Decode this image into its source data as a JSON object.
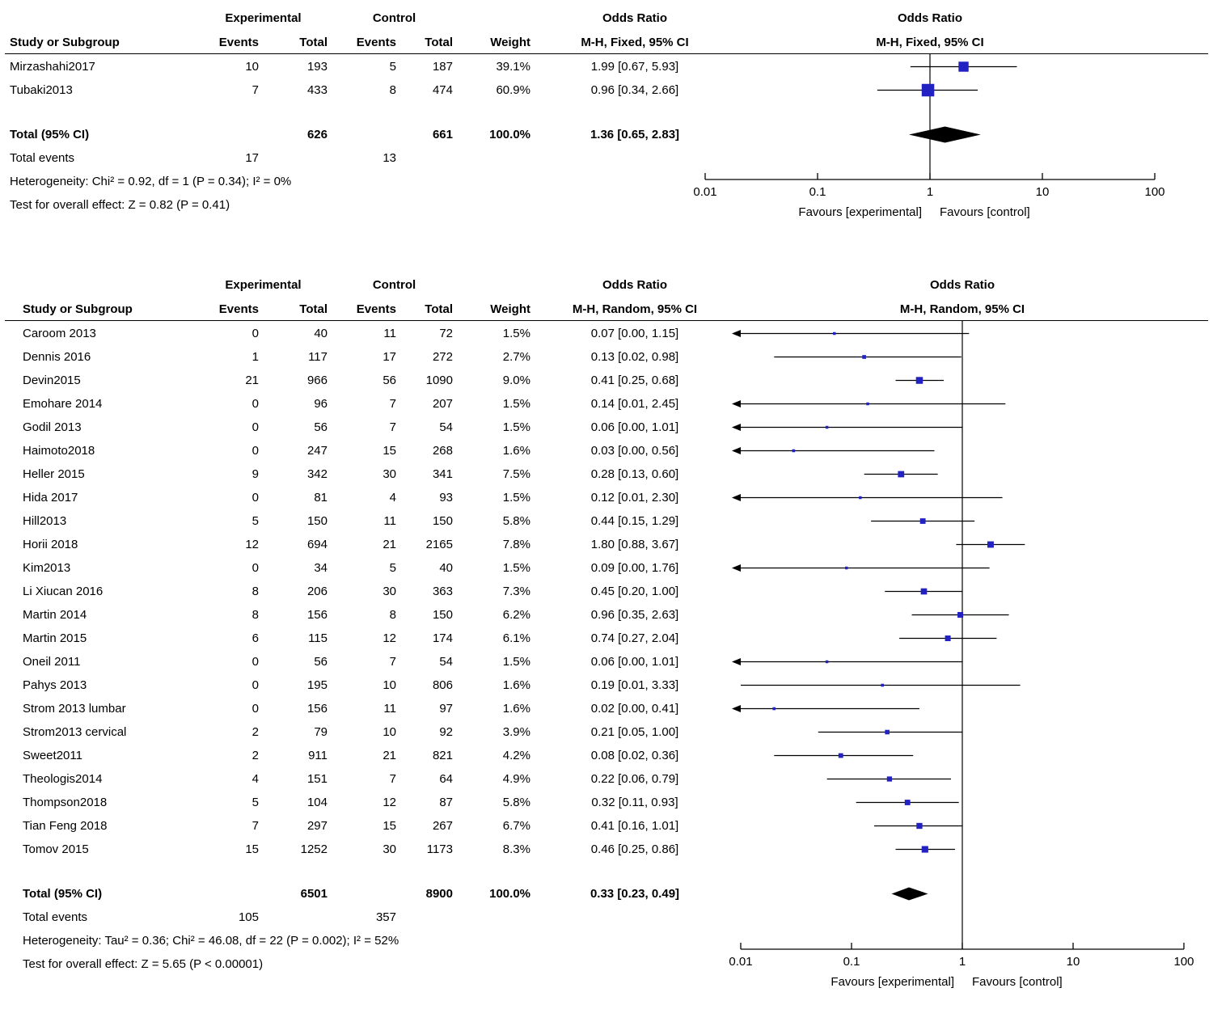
{
  "colors": {
    "square": "#2222c2",
    "diamond": "#000000",
    "line": "#000000",
    "text": "#000000",
    "background": "#ffffff"
  },
  "chart_data": {
    "type": "forest",
    "scale": "log10",
    "axis_min": 0.01,
    "axis_max": 100,
    "panels": [
      {
        "name": "fixed-effect",
        "headers": {
          "group_experimental": "Experimental",
          "group_control": "Control",
          "or_col_title": "Odds Ratio",
          "plot_title": "Odds Ratio",
          "study": "Study or Subgroup",
          "events": "Events",
          "total": "Total",
          "weight": "Weight",
          "method": "M-H, Fixed, 95% CI",
          "plot_method": "M-H, Fixed, 95% CI"
        },
        "studies": [
          {
            "study": "Mirzashahi2017",
            "exp_events": "10",
            "exp_total": "193",
            "ctl_events": "5",
            "ctl_total": "187",
            "weight": "39.1%",
            "or_text": "1.99 [0.67, 5.93]",
            "est": 1.99,
            "lo": 0.67,
            "hi": 5.93,
            "w": 39.1,
            "clip_lo": false
          },
          {
            "study": "Tubaki2013",
            "exp_events": "7",
            "exp_total": "433",
            "ctl_events": "8",
            "ctl_total": "474",
            "weight": "60.9%",
            "or_text": "0.96 [0.34, 2.66]",
            "est": 0.96,
            "lo": 0.34,
            "hi": 2.66,
            "w": 60.9,
            "clip_lo": false
          }
        ],
        "total_row": {
          "label": "Total (95% CI)",
          "exp_total": "626",
          "ctl_total": "661",
          "weight": "100.0%",
          "or_text": "1.36 [0.65, 2.83]",
          "est": 1.36,
          "lo": 0.65,
          "hi": 2.83
        },
        "total_events": {
          "label": "Total events",
          "exp": "17",
          "ctl": "13"
        },
        "heterogeneity": "Heterogeneity: Chi² = 0.92, df = 1 (P = 0.34); I² = 0%",
        "overall_effect": "Test for overall effect: Z = 0.82 (P = 0.41)",
        "axis_ticks": [
          "0.01",
          "0.1",
          "1",
          "10",
          "100"
        ],
        "axis_values": [
          0.01,
          0.1,
          1,
          10,
          100
        ],
        "favours_left": "Favours [experimental]",
        "favours_right": "Favours [control]"
      },
      {
        "name": "random-effect",
        "headers": {
          "group_experimental": "Experimental",
          "group_control": "Control",
          "or_col_title": "Odds Ratio",
          "plot_title": "Odds Ratio",
          "study": "Study or Subgroup",
          "events": "Events",
          "total": "Total",
          "weight": "Weight",
          "method": "M-H, Random, 95% CI",
          "plot_method": "M-H, Random, 95% CI"
        },
        "studies": [
          {
            "study": "Caroom 2013",
            "exp_events": "0",
            "exp_total": "40",
            "ctl_events": "11",
            "ctl_total": "72",
            "weight": "1.5%",
            "or_text": "0.07 [0.00, 1.15]",
            "est": 0.07,
            "lo": 0.01,
            "hi": 1.15,
            "w": 1.5,
            "clip_lo": true
          },
          {
            "study": "Dennis 2016",
            "exp_events": "1",
            "exp_total": "117",
            "ctl_events": "17",
            "ctl_total": "272",
            "weight": "2.7%",
            "or_text": "0.13 [0.02, 0.98]",
            "est": 0.13,
            "lo": 0.02,
            "hi": 0.98,
            "w": 2.7,
            "clip_lo": false
          },
          {
            "study": "Devin2015",
            "exp_events": "21",
            "exp_total": "966",
            "ctl_events": "56",
            "ctl_total": "1090",
            "weight": "9.0%",
            "or_text": "0.41 [0.25, 0.68]",
            "est": 0.41,
            "lo": 0.25,
            "hi": 0.68,
            "w": 9.0,
            "clip_lo": false
          },
          {
            "study": "Emohare 2014",
            "exp_events": "0",
            "exp_total": "96",
            "ctl_events": "7",
            "ctl_total": "207",
            "weight": "1.5%",
            "or_text": "0.14 [0.01, 2.45]",
            "est": 0.14,
            "lo": 0.01,
            "hi": 2.45,
            "w": 1.5,
            "clip_lo": true
          },
          {
            "study": "Godil 2013",
            "exp_events": "0",
            "exp_total": "56",
            "ctl_events": "7",
            "ctl_total": "54",
            "weight": "1.5%",
            "or_text": "0.06 [0.00, 1.01]",
            "est": 0.06,
            "lo": 0.01,
            "hi": 1.01,
            "w": 1.5,
            "clip_lo": true
          },
          {
            "study": "Haimoto2018",
            "exp_events": "0",
            "exp_total": "247",
            "ctl_events": "15",
            "ctl_total": "268",
            "weight": "1.6%",
            "or_text": "0.03 [0.00, 0.56]",
            "est": 0.03,
            "lo": 0.01,
            "hi": 0.56,
            "w": 1.6,
            "clip_lo": true
          },
          {
            "study": "Heller 2015",
            "exp_events": "9",
            "exp_total": "342",
            "ctl_events": "30",
            "ctl_total": "341",
            "weight": "7.5%",
            "or_text": "0.28 [0.13, 0.60]",
            "est": 0.28,
            "lo": 0.13,
            "hi": 0.6,
            "w": 7.5,
            "clip_lo": false
          },
          {
            "study": "Hida 2017",
            "exp_events": "0",
            "exp_total": "81",
            "ctl_events": "4",
            "ctl_total": "93",
            "weight": "1.5%",
            "or_text": "0.12 [0.01, 2.30]",
            "est": 0.12,
            "lo": 0.01,
            "hi": 2.3,
            "w": 1.5,
            "clip_lo": true
          },
          {
            "study": "Hill2013",
            "exp_events": "5",
            "exp_total": "150",
            "ctl_events": "11",
            "ctl_total": "150",
            "weight": "5.8%",
            "or_text": "0.44 [0.15, 1.29]",
            "est": 0.44,
            "lo": 0.15,
            "hi": 1.29,
            "w": 5.8,
            "clip_lo": false
          },
          {
            "study": "Horii 2018",
            "exp_events": "12",
            "exp_total": "694",
            "ctl_events": "21",
            "ctl_total": "2165",
            "weight": "7.8%",
            "or_text": "1.80 [0.88, 3.67]",
            "est": 1.8,
            "lo": 0.88,
            "hi": 3.67,
            "w": 7.8,
            "clip_lo": false
          },
          {
            "study": "Kim2013",
            "exp_events": "0",
            "exp_total": "34",
            "ctl_events": "5",
            "ctl_total": "40",
            "weight": "1.5%",
            "or_text": "0.09 [0.00, 1.76]",
            "est": 0.09,
            "lo": 0.01,
            "hi": 1.76,
            "w": 1.5,
            "clip_lo": true
          },
          {
            "study": "Li Xiucan 2016",
            "exp_events": "8",
            "exp_total": "206",
            "ctl_events": "30",
            "ctl_total": "363",
            "weight": "7.3%",
            "or_text": "0.45 [0.20, 1.00]",
            "est": 0.45,
            "lo": 0.2,
            "hi": 1.0,
            "w": 7.3,
            "clip_lo": false
          },
          {
            "study": "Martin 2014",
            "exp_events": "8",
            "exp_total": "156",
            "ctl_events": "8",
            "ctl_total": "150",
            "weight": "6.2%",
            "or_text": "0.96 [0.35, 2.63]",
            "est": 0.96,
            "lo": 0.35,
            "hi": 2.63,
            "w": 6.2,
            "clip_lo": false
          },
          {
            "study": "Martin 2015",
            "exp_events": "6",
            "exp_total": "115",
            "ctl_events": "12",
            "ctl_total": "174",
            "weight": "6.1%",
            "or_text": "0.74 [0.27, 2.04]",
            "est": 0.74,
            "lo": 0.27,
            "hi": 2.04,
            "w": 6.1,
            "clip_lo": false
          },
          {
            "study": "Oneil 2011",
            "exp_events": "0",
            "exp_total": "56",
            "ctl_events": "7",
            "ctl_total": "54",
            "weight": "1.5%",
            "or_text": "0.06 [0.00, 1.01]",
            "est": 0.06,
            "lo": 0.01,
            "hi": 1.01,
            "w": 1.5,
            "clip_lo": true
          },
          {
            "study": "Pahys 2013",
            "exp_events": "0",
            "exp_total": "195",
            "ctl_events": "10",
            "ctl_total": "806",
            "weight": "1.6%",
            "or_text": "0.19 [0.01, 3.33]",
            "est": 0.19,
            "lo": 0.01,
            "hi": 3.33,
            "w": 1.6,
            "clip_lo": false
          },
          {
            "study": "Strom 2013 lumbar",
            "exp_events": "0",
            "exp_total": "156",
            "ctl_events": "11",
            "ctl_total": "97",
            "weight": "1.6%",
            "or_text": "0.02 [0.00, 0.41]",
            "est": 0.02,
            "lo": 0.01,
            "hi": 0.41,
            "w": 1.6,
            "clip_lo": true
          },
          {
            "study": "Strom2013 cervical",
            "exp_events": "2",
            "exp_total": "79",
            "ctl_events": "10",
            "ctl_total": "92",
            "weight": "3.9%",
            "or_text": "0.21 [0.05, 1.00]",
            "est": 0.21,
            "lo": 0.05,
            "hi": 1.0,
            "w": 3.9,
            "clip_lo": false
          },
          {
            "study": "Sweet2011",
            "exp_events": "2",
            "exp_total": "911",
            "ctl_events": "21",
            "ctl_total": "821",
            "weight": "4.2%",
            "or_text": "0.08 [0.02, 0.36]",
            "est": 0.08,
            "lo": 0.02,
            "hi": 0.36,
            "w": 4.2,
            "clip_lo": false
          },
          {
            "study": "Theologis2014",
            "exp_events": "4",
            "exp_total": "151",
            "ctl_events": "7",
            "ctl_total": "64",
            "weight": "4.9%",
            "or_text": "0.22 [0.06, 0.79]",
            "est": 0.22,
            "lo": 0.06,
            "hi": 0.79,
            "w": 4.9,
            "clip_lo": false
          },
          {
            "study": "Thompson2018",
            "exp_events": "5",
            "exp_total": "104",
            "ctl_events": "12",
            "ctl_total": "87",
            "weight": "5.8%",
            "or_text": "0.32 [0.11, 0.93]",
            "est": 0.32,
            "lo": 0.11,
            "hi": 0.93,
            "w": 5.8,
            "clip_lo": false
          },
          {
            "study": "Tian Feng 2018",
            "exp_events": "7",
            "exp_total": "297",
            "ctl_events": "15",
            "ctl_total": "267",
            "weight": "6.7%",
            "or_text": "0.41 [0.16, 1.01]",
            "est": 0.41,
            "lo": 0.16,
            "hi": 1.01,
            "w": 6.7,
            "clip_lo": false
          },
          {
            "study": "Tomov 2015",
            "exp_events": "15",
            "exp_total": "1252",
            "ctl_events": "30",
            "ctl_total": "1173",
            "weight": "8.3%",
            "or_text": "0.46 [0.25, 0.86]",
            "est": 0.46,
            "lo": 0.25,
            "hi": 0.86,
            "w": 8.3,
            "clip_lo": false
          }
        ],
        "total_row": {
          "label": "Total (95% CI)",
          "exp_total": "6501",
          "ctl_total": "8900",
          "weight": "100.0%",
          "or_text": "0.33 [0.23, 0.49]",
          "est": 0.33,
          "lo": 0.23,
          "hi": 0.49
        },
        "total_events": {
          "label": "Total events",
          "exp": "105",
          "ctl": "357"
        },
        "heterogeneity": "Heterogeneity: Tau² = 0.36; Chi² = 46.08, df = 22 (P = 0.002); I² = 52%",
        "overall_effect": "Test for overall effect: Z = 5.65 (P < 0.00001)",
        "axis_ticks": [
          "0.01",
          "0.1",
          "1",
          "10",
          "100"
        ],
        "axis_values": [
          0.01,
          0.1,
          1,
          10,
          100
        ],
        "favours_left": "Favours [experimental]",
        "favours_right": "Favours [control]"
      }
    ]
  }
}
